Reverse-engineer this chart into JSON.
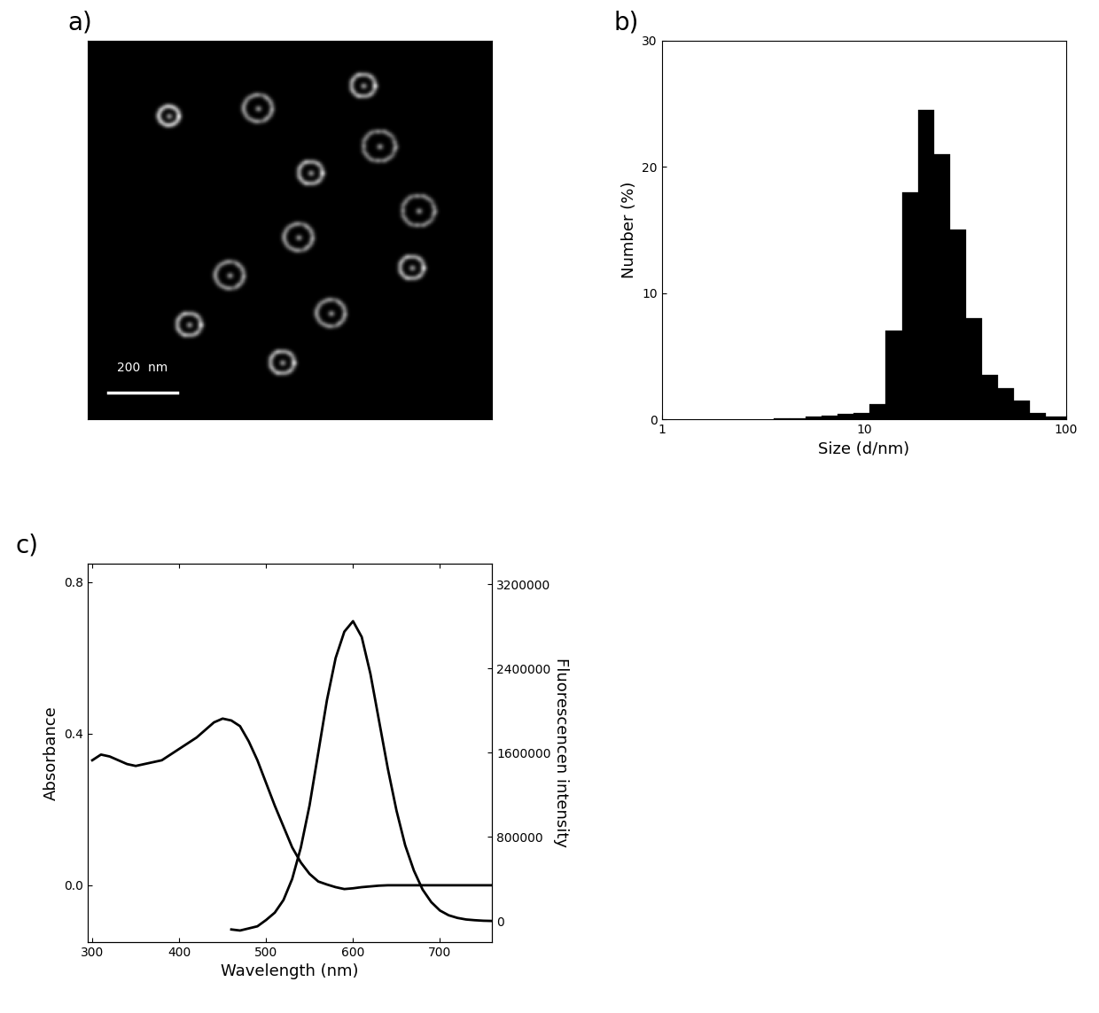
{
  "bg_color": "#ffffff",
  "panel_a": {
    "label": "a)",
    "scalebar_text": "200  nm"
  },
  "panel_b": {
    "label": "b)",
    "ylabel": "Number (%)",
    "xlabel": "Size (d/nm)",
    "ylim": [
      0,
      30
    ],
    "xlim": [
      1,
      100
    ],
    "xticks": [
      1,
      10,
      100
    ],
    "yticks": [
      0,
      10,
      20,
      30
    ],
    "bar_edges": [
      1.0,
      1.2,
      1.44,
      1.73,
      2.07,
      2.49,
      2.99,
      3.58,
      4.3,
      5.16,
      6.19,
      7.43,
      8.91,
      10.69,
      12.83,
      15.4,
      18.48,
      22.17,
      26.61,
      31.93,
      38.31,
      45.97,
      55.17,
      66.2,
      79.43,
      100.0
    ],
    "bar_heights": [
      0.0,
      0.0,
      0.0,
      0.0,
      0.0,
      0.0,
      0.0,
      0.1,
      0.1,
      0.2,
      0.3,
      0.4,
      0.5,
      1.2,
      7.0,
      18.0,
      24.5,
      21.0,
      15.0,
      8.0,
      3.5,
      2.5,
      1.5,
      0.5,
      0.2
    ]
  },
  "panel_c": {
    "label": "c)",
    "ylabel_left": "Absorbance",
    "ylabel_right": "Fluorescencen intensity",
    "xlabel": "Wavelength (nm)",
    "xlim": [
      295,
      760
    ],
    "ylim_left": [
      -0.15,
      0.85
    ],
    "ylim_right": [
      -200000,
      3400000
    ],
    "yticks_left": [
      0.0,
      0.4,
      0.8
    ],
    "yticks_right": [
      0,
      800000,
      1600000,
      2400000,
      3200000
    ],
    "xticks": [
      300,
      400,
      500,
      600,
      700
    ],
    "absorbance_x": [
      300,
      310,
      320,
      330,
      340,
      350,
      360,
      370,
      380,
      390,
      400,
      410,
      420,
      430,
      440,
      450,
      460,
      470,
      480,
      490,
      500,
      510,
      520,
      530,
      540,
      550,
      560,
      570,
      580,
      590,
      600,
      610,
      620,
      630,
      640,
      650,
      660,
      670,
      680,
      690,
      700,
      710,
      720,
      730,
      740,
      750,
      760
    ],
    "absorbance_y": [
      0.33,
      0.345,
      0.34,
      0.33,
      0.32,
      0.315,
      0.32,
      0.325,
      0.33,
      0.345,
      0.36,
      0.375,
      0.39,
      0.41,
      0.43,
      0.44,
      0.435,
      0.42,
      0.38,
      0.33,
      0.27,
      0.21,
      0.155,
      0.1,
      0.06,
      0.03,
      0.01,
      0.002,
      -0.005,
      -0.01,
      -0.008,
      -0.005,
      -0.003,
      -0.001,
      0.0,
      0.0,
      0.0,
      0.0,
      0.0,
      0.0,
      0.0,
      0.0,
      0.0,
      0.0,
      0.0,
      0.0,
      0.0
    ],
    "fluorescence_x": [
      460,
      470,
      480,
      490,
      500,
      510,
      520,
      530,
      540,
      550,
      560,
      570,
      580,
      590,
      600,
      610,
      620,
      630,
      640,
      650,
      660,
      670,
      680,
      690,
      700,
      710,
      720,
      730,
      740,
      750,
      760
    ],
    "fluorescence_y": [
      -80000,
      -90000,
      -70000,
      -50000,
      10000,
      80000,
      200000,
      400000,
      700000,
      1100000,
      1600000,
      2100000,
      2500000,
      2750000,
      2850000,
      2700000,
      2350000,
      1900000,
      1450000,
      1050000,
      720000,
      480000,
      300000,
      180000,
      100000,
      55000,
      30000,
      15000,
      8000,
      3000,
      1000
    ]
  },
  "spots": [
    [
      18,
      42
    ],
    [
      12,
      68
    ],
    [
      28,
      72
    ],
    [
      35,
      55
    ],
    [
      52,
      52
    ],
    [
      62,
      35
    ],
    [
      72,
      60
    ],
    [
      75,
      25
    ],
    [
      85,
      48
    ],
    [
      45,
      82
    ],
    [
      20,
      20
    ],
    [
      60,
      80
    ]
  ],
  "spot_radii": [
    3.5,
    3.0,
    4.0,
    3.0,
    3.5,
    3.5,
    3.5,
    3.0,
    3.0,
    4.0,
    2.5,
    3.0
  ]
}
